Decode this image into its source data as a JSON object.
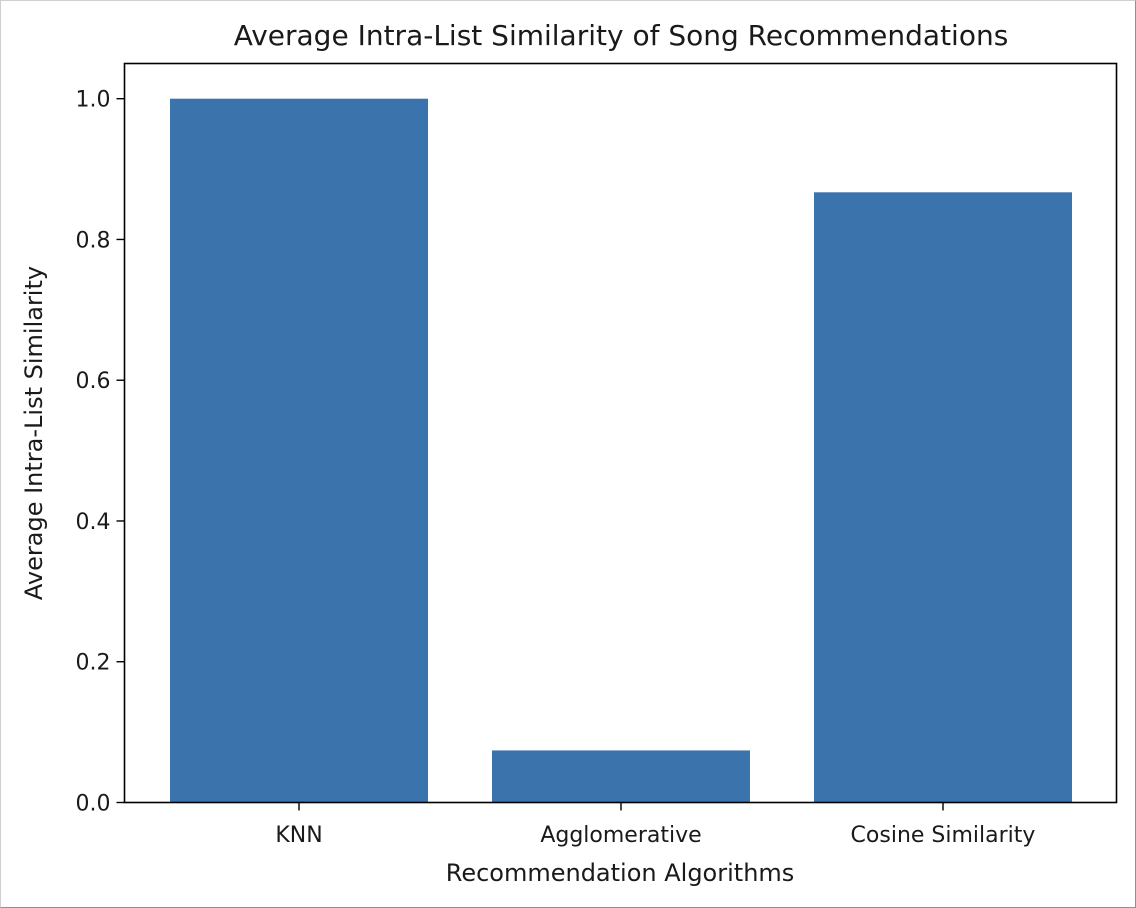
{
  "chart_data": {
    "type": "bar",
    "title": "Average Intra-List Similarity of Song Recommendations",
    "xlabel": "Recommendation Algorithms",
    "ylabel": "Average Intra-List Similarity",
    "categories": [
      "KNN",
      "Agglomerative",
      "Cosine Similarity"
    ],
    "values": [
      1.0,
      0.074,
      0.867
    ],
    "ylim": [
      0,
      1.05
    ],
    "yticks": [
      0.0,
      0.2,
      0.4,
      0.6,
      0.8,
      1.0
    ],
    "ytick_labels": [
      "0.0",
      "0.2",
      "0.4",
      "0.6",
      "0.8",
      "1.0"
    ],
    "bar_color": "#3b74ad",
    "grid": false,
    "legend": "none"
  }
}
